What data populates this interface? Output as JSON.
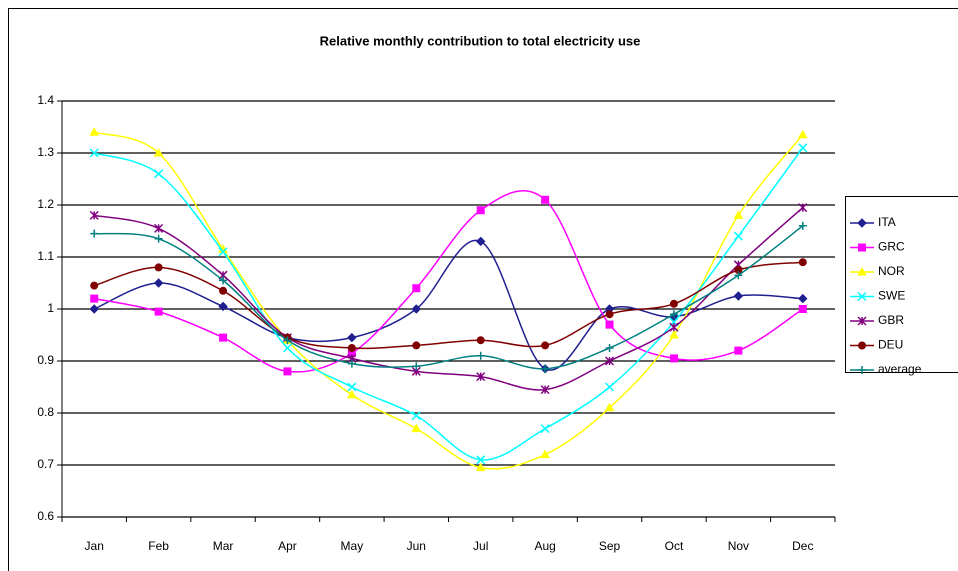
{
  "chart_data": {
    "type": "line",
    "title": "Relative monthly contribution to total electricity use",
    "categories": [
      "Jan",
      "Feb",
      "Mar",
      "Apr",
      "May",
      "Jun",
      "Jul",
      "Aug",
      "Sep",
      "Oct",
      "Nov",
      "Dec"
    ],
    "series": [
      {
        "name": "ITA",
        "color": "#1f1f8f",
        "marker": "diamond",
        "values": [
          1.0,
          1.05,
          1.005,
          0.945,
          0.945,
          1.0,
          1.13,
          0.885,
          1.0,
          0.985,
          1.025,
          1.02
        ]
      },
      {
        "name": "GRC",
        "color": "#ff00ff",
        "marker": "square",
        "values": [
          1.02,
          0.995,
          0.945,
          0.88,
          0.915,
          1.04,
          1.19,
          1.21,
          0.97,
          0.905,
          0.92,
          1.0
        ]
      },
      {
        "name": "NOR",
        "color": "#ffff00",
        "marker": "triangle",
        "values": [
          1.34,
          1.3,
          1.115,
          0.94,
          0.835,
          0.77,
          0.695,
          0.72,
          0.81,
          0.95,
          1.18,
          1.335
        ]
      },
      {
        "name": "SWE",
        "color": "#00ffff",
        "marker": "cross",
        "values": [
          1.3,
          1.26,
          1.11,
          0.925,
          0.85,
          0.795,
          0.71,
          0.77,
          0.85,
          0.975,
          1.14,
          1.31
        ]
      },
      {
        "name": "GBR",
        "color": "#800080",
        "marker": "star",
        "values": [
          1.18,
          1.155,
          1.065,
          0.945,
          0.905,
          0.88,
          0.87,
          0.845,
          0.9,
          0.965,
          1.085,
          1.195
        ]
      },
      {
        "name": "DEU",
        "color": "#800000",
        "marker": "circle",
        "values": [
          1.045,
          1.08,
          1.035,
          0.945,
          0.925,
          0.93,
          0.94,
          0.93,
          0.99,
          1.01,
          1.075,
          1.09
        ]
      },
      {
        "name": "average",
        "color": "#008080",
        "marker": "plus",
        "values": [
          1.145,
          1.135,
          1.055,
          0.94,
          0.895,
          0.89,
          0.91,
          0.885,
          0.925,
          0.99,
          1.065,
          1.16
        ]
      }
    ],
    "ylim": [
      0.6,
      1.4
    ],
    "yticks": [
      0.6,
      0.7,
      0.8,
      0.9,
      1,
      1.1,
      1.2,
      1.3,
      1.4
    ],
    "grid": true,
    "smooth": true,
    "legend": "right"
  }
}
